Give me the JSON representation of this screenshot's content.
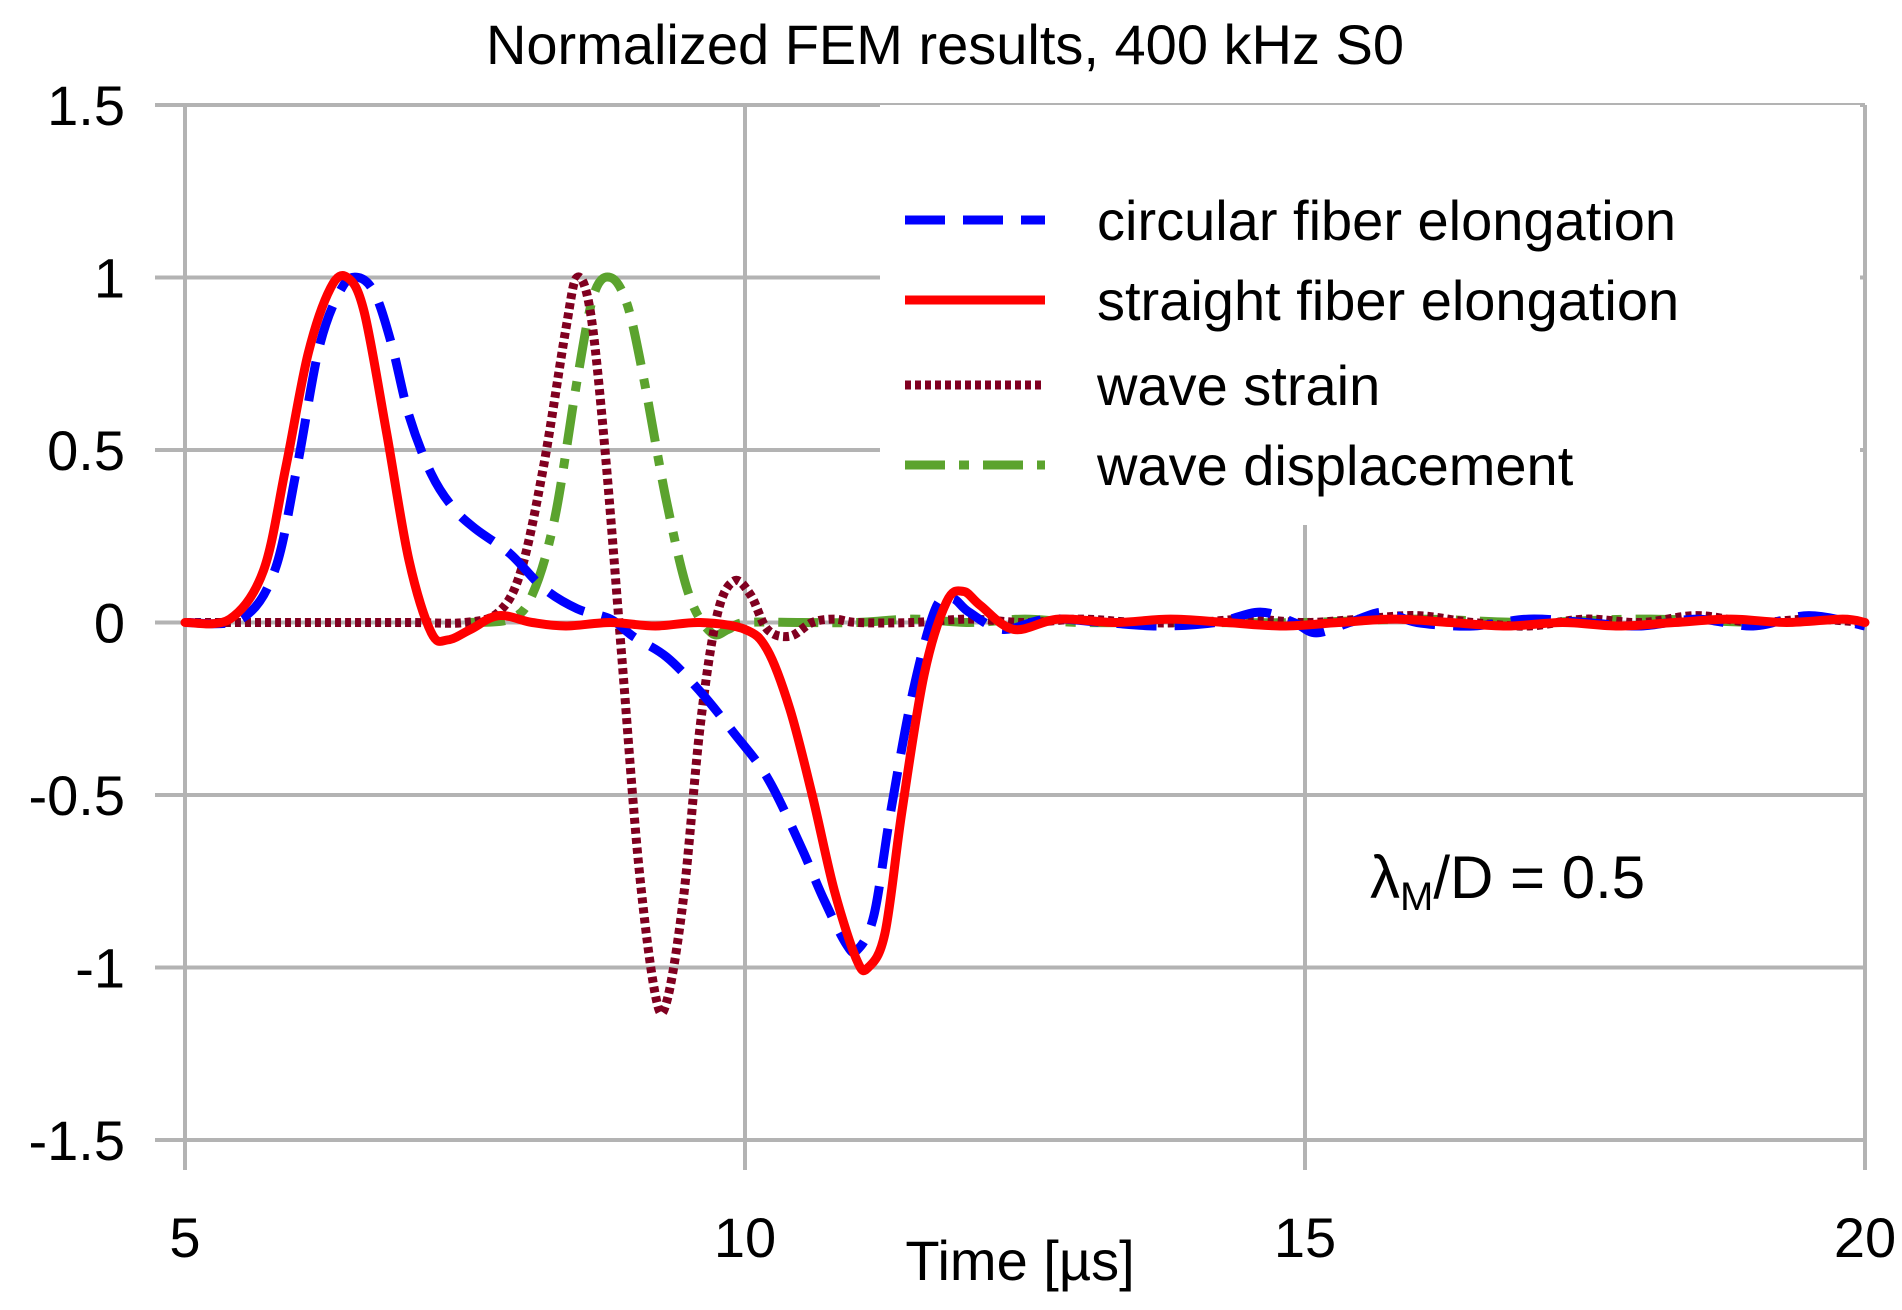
{
  "chart_data": {
    "type": "line",
    "title": "Normalized FEM results, 400 kHz S0",
    "xlabel": "Time [µs]",
    "ylabel": "",
    "xlim": [
      5,
      20
    ],
    "ylim": [
      -1.5,
      1.5
    ],
    "xticks": [
      5,
      10,
      15,
      20
    ],
    "yticks": [
      1.5,
      1,
      0.5,
      0,
      -0.5,
      -1,
      -1.5
    ],
    "ytick_labels": [
      "1.5",
      "1",
      "0.5",
      "0",
      "-0.5",
      "-1",
      "-1.5"
    ],
    "xtick_labels": [
      "5",
      "10",
      "15",
      "20"
    ],
    "grid": true,
    "legend_position": "top-right",
    "annotation": {
      "main": "λ",
      "sub": "M",
      "rest": "/D = 0.5"
    },
    "series": [
      {
        "name": "circular fiber elongation",
        "color": "#0000ff",
        "style": "dashed",
        "points": [
          [
            5,
            0
          ],
          [
            5.5,
            0.01
          ],
          [
            5.8,
            0.15
          ],
          [
            6.0,
            0.45
          ],
          [
            6.2,
            0.8
          ],
          [
            6.4,
            0.97
          ],
          [
            6.55,
            1.0
          ],
          [
            6.7,
            0.95
          ],
          [
            6.85,
            0.8
          ],
          [
            7.0,
            0.6
          ],
          [
            7.2,
            0.43
          ],
          [
            7.4,
            0.33
          ],
          [
            7.6,
            0.27
          ],
          [
            7.9,
            0.2
          ],
          [
            8.2,
            0.1
          ],
          [
            8.5,
            0.04
          ],
          [
            8.8,
            0.01
          ],
          [
            9.0,
            -0.04
          ],
          [
            9.3,
            -0.1
          ],
          [
            9.6,
            -0.2
          ],
          [
            9.9,
            -0.32
          ],
          [
            10.2,
            -0.45
          ],
          [
            10.5,
            -0.65
          ],
          [
            10.7,
            -0.8
          ],
          [
            10.9,
            -0.93
          ],
          [
            11.0,
            -0.95
          ],
          [
            11.15,
            -0.85
          ],
          [
            11.3,
            -0.55
          ],
          [
            11.5,
            -0.2
          ],
          [
            11.7,
            0.04
          ],
          [
            11.85,
            0.07
          ],
          [
            12.0,
            0.03
          ],
          [
            12.3,
            -0.02
          ],
          [
            12.7,
            0.01
          ],
          [
            13.2,
            0.0
          ],
          [
            13.7,
            -0.01
          ],
          [
            14.2,
            0.0
          ],
          [
            14.6,
            0.03
          ],
          [
            14.9,
            0.0
          ],
          [
            15.1,
            -0.03
          ],
          [
            15.4,
            0.0
          ],
          [
            15.7,
            0.03
          ],
          [
            16.0,
            0.0
          ],
          [
            16.5,
            -0.01
          ],
          [
            17.0,
            0.01
          ],
          [
            17.5,
            0.0
          ],
          [
            18.0,
            -0.01
          ],
          [
            18.5,
            0.01
          ],
          [
            19.0,
            -0.01
          ],
          [
            19.5,
            0.02
          ],
          [
            20.0,
            -0.01
          ]
        ]
      },
      {
        "name": "straight fiber elongation",
        "color": "#ff0000",
        "style": "solid",
        "points": [
          [
            5,
            0
          ],
          [
            5.4,
            0.01
          ],
          [
            5.7,
            0.15
          ],
          [
            5.9,
            0.45
          ],
          [
            6.1,
            0.78
          ],
          [
            6.3,
            0.97
          ],
          [
            6.45,
            1.0
          ],
          [
            6.6,
            0.9
          ],
          [
            6.8,
            0.55
          ],
          [
            7.0,
            0.18
          ],
          [
            7.2,
            -0.03
          ],
          [
            7.35,
            -0.05
          ],
          [
            7.55,
            -0.02
          ],
          [
            7.8,
            0.02
          ],
          [
            8.1,
            0.0
          ],
          [
            8.4,
            -0.01
          ],
          [
            8.8,
            0.0
          ],
          [
            9.2,
            -0.01
          ],
          [
            9.6,
            0.0
          ],
          [
            10.0,
            -0.02
          ],
          [
            10.2,
            -0.08
          ],
          [
            10.4,
            -0.25
          ],
          [
            10.6,
            -0.5
          ],
          [
            10.8,
            -0.78
          ],
          [
            11.0,
            -0.98
          ],
          [
            11.1,
            -1.0
          ],
          [
            11.25,
            -0.9
          ],
          [
            11.4,
            -0.55
          ],
          [
            11.6,
            -0.15
          ],
          [
            11.8,
            0.06
          ],
          [
            11.95,
            0.09
          ],
          [
            12.1,
            0.05
          ],
          [
            12.4,
            -0.02
          ],
          [
            12.8,
            0.01
          ],
          [
            13.3,
            0.0
          ],
          [
            13.8,
            0.01
          ],
          [
            14.3,
            0.0
          ],
          [
            14.8,
            -0.01
          ],
          [
            15.3,
            0.0
          ],
          [
            15.8,
            0.01
          ],
          [
            16.3,
            0.0
          ],
          [
            16.8,
            -0.01
          ],
          [
            17.3,
            0.0
          ],
          [
            17.8,
            -0.01
          ],
          [
            18.3,
            0.0
          ],
          [
            18.8,
            0.01
          ],
          [
            19.3,
            0.0
          ],
          [
            19.8,
            0.01
          ],
          [
            20.0,
            0.0
          ]
        ]
      },
      {
        "name": "wave strain",
        "color": "#800020",
        "style": "dotted",
        "points": [
          [
            5,
            0
          ],
          [
            6,
            0
          ],
          [
            7,
            0
          ],
          [
            7.5,
            0.0
          ],
          [
            7.8,
            0.03
          ],
          [
            8.0,
            0.15
          ],
          [
            8.2,
            0.45
          ],
          [
            8.4,
            0.85
          ],
          [
            8.5,
            1.0
          ],
          [
            8.62,
            0.9
          ],
          [
            8.75,
            0.5
          ],
          [
            8.9,
            -0.1
          ],
          [
            9.05,
            -0.7
          ],
          [
            9.2,
            -1.08
          ],
          [
            9.3,
            -1.1
          ],
          [
            9.45,
            -0.8
          ],
          [
            9.6,
            -0.3
          ],
          [
            9.75,
            0.02
          ],
          [
            9.9,
            0.12
          ],
          [
            10.05,
            0.08
          ],
          [
            10.2,
            -0.02
          ],
          [
            10.4,
            -0.04
          ],
          [
            10.6,
            0.0
          ],
          [
            10.8,
            0.01
          ],
          [
            11.0,
            0.0
          ],
          [
            11.5,
            0.0
          ],
          [
            12.0,
            0.01
          ],
          [
            12.5,
            0.0
          ],
          [
            13.0,
            0.01
          ],
          [
            13.5,
            0.0
          ],
          [
            14.0,
            0.0
          ],
          [
            14.5,
            0.01
          ],
          [
            15.0,
            0.0
          ],
          [
            15.5,
            0.01
          ],
          [
            16.0,
            0.02
          ],
          [
            16.5,
            0.0
          ],
          [
            17.0,
            -0.01
          ],
          [
            17.5,
            0.01
          ],
          [
            18.0,
            0.0
          ],
          [
            18.5,
            0.02
          ],
          [
            19.0,
            0.0
          ],
          [
            19.5,
            0.01
          ],
          [
            20.0,
            0.0
          ]
        ]
      },
      {
        "name": "wave displacement",
        "color": "#5ba32e",
        "style": "dash-dot",
        "points": [
          [
            7.5,
            0
          ],
          [
            7.9,
            0.01
          ],
          [
            8.1,
            0.08
          ],
          [
            8.3,
            0.3
          ],
          [
            8.5,
            0.7
          ],
          [
            8.65,
            0.95
          ],
          [
            8.8,
            1.0
          ],
          [
            8.95,
            0.92
          ],
          [
            9.1,
            0.7
          ],
          [
            9.3,
            0.35
          ],
          [
            9.5,
            0.08
          ],
          [
            9.7,
            -0.03
          ],
          [
            9.85,
            -0.02
          ],
          [
            10.0,
            0.0
          ],
          [
            10.5,
            0.0
          ],
          [
            11.0,
            0.0
          ],
          [
            11.5,
            0.01
          ],
          [
            12.0,
            0.0
          ],
          [
            12.5,
            0.01
          ],
          [
            13.0,
            0.0
          ],
          [
            14.0,
            0.0
          ],
          [
            15.0,
            0.0
          ],
          [
            16.0,
            0.01
          ],
          [
            17.0,
            0.0
          ],
          [
            18.0,
            0.01
          ],
          [
            19.0,
            0.0
          ]
        ]
      }
    ]
  }
}
